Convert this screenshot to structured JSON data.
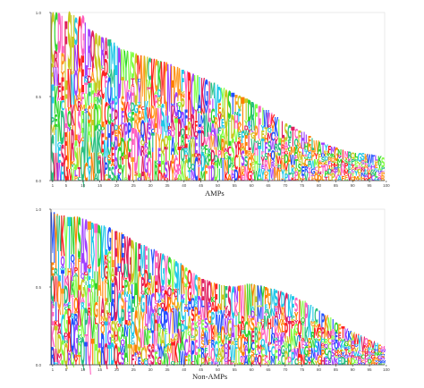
{
  "colors": {
    "axis": "#333333",
    "frame": "#dddddd",
    "palette": [
      "#ff2020",
      "#ff9a1f",
      "#ff7f00",
      "#2fd42f",
      "#20c8e8",
      "#2050ff",
      "#a040ff",
      "#ff60c0",
      "#c8c820",
      "#28c080",
      "#e02060",
      "#7fff40"
    ]
  },
  "chart_data": [
    {
      "type": "sequence-logo",
      "caption": "AMPs",
      "xlabel": "AMPs",
      "ylim": [
        0,
        1
      ],
      "yticks": [
        "1.0",
        "0.5",
        "0.0"
      ],
      "xticks": [
        "1",
        "5",
        "10",
        "15",
        "20",
        "25",
        "30",
        "35",
        "40",
        "45",
        "50",
        "55",
        "60",
        "65",
        "70",
        "75",
        "80",
        "85",
        "90",
        "95",
        "100"
      ],
      "positions": [
        1,
        100
      ],
      "envelope": {
        "x": [
          1,
          2,
          3,
          4,
          5,
          6,
          8,
          10,
          12,
          15,
          18,
          20,
          22,
          25,
          30,
          35,
          40,
          45,
          50,
          55,
          60,
          65,
          70,
          75,
          80,
          85,
          90,
          95,
          100
        ],
        "y": [
          1.0,
          1.0,
          1.0,
          0.98,
          0.95,
          1.0,
          0.97,
          0.98,
          0.9,
          0.86,
          0.84,
          0.8,
          0.78,
          0.76,
          0.73,
          0.7,
          0.66,
          0.62,
          0.57,
          0.52,
          0.48,
          0.42,
          0.35,
          0.3,
          0.24,
          0.2,
          0.17,
          0.16,
          0.14
        ]
      }
    },
    {
      "type": "sequence-logo",
      "caption": "Non-AMPs",
      "xlabel": "Non-AMPs",
      "ylim": [
        0,
        1
      ],
      "yticks": [
        "1.0",
        "0.5",
        "0.0"
      ],
      "xticks": [
        "1",
        "5",
        "10",
        "15",
        "20",
        "25",
        "30",
        "35",
        "40",
        "45",
        "50",
        "55",
        "60",
        "65",
        "70",
        "75",
        "80",
        "85",
        "90",
        "95",
        "100"
      ],
      "positions": [
        1,
        100
      ],
      "envelope": {
        "x": [
          1,
          2,
          3,
          4,
          5,
          6,
          8,
          10,
          12,
          15,
          18,
          20,
          22,
          25,
          30,
          35,
          40,
          45,
          50,
          55,
          60,
          65,
          70,
          75,
          80,
          85,
          90,
          95,
          100
        ],
        "y": [
          0.98,
          0.97,
          0.96,
          0.96,
          0.95,
          0.95,
          0.95,
          0.94,
          0.92,
          0.9,
          0.88,
          0.86,
          0.84,
          0.8,
          0.75,
          0.7,
          0.64,
          0.56,
          0.52,
          0.5,
          0.52,
          0.5,
          0.47,
          0.42,
          0.36,
          0.29,
          0.22,
          0.17,
          0.12
        ]
      }
    }
  ]
}
